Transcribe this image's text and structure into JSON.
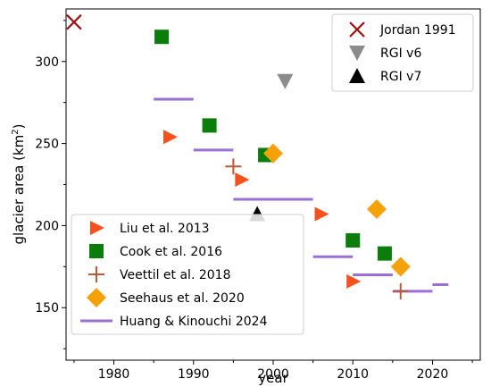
{
  "chart_data": {
    "type": "scatter",
    "xlabel": "year",
    "ylabel_main": "glacier area (km",
    "ylabel_sup": "2",
    "ylabel_close": ")",
    "xlim": [
      1974,
      2026
    ],
    "ylim": [
      118,
      332
    ],
    "xticks": [
      1980,
      1990,
      2000,
      2010,
      2020
    ],
    "yticks": [
      150,
      200,
      250,
      300
    ],
    "xtick_labels": [
      "1980",
      "1990",
      "2000",
      "2010",
      "2020"
    ],
    "ytick_labels": [
      "150",
      "200",
      "250",
      "300"
    ],
    "grid": false,
    "series": [
      {
        "name": "Jordan 1991",
        "marker": "asterisk-x",
        "color": "#a01010",
        "points": [
          [
            1975,
            324
          ]
        ]
      },
      {
        "name": "RGI v6",
        "marker": "triangle-down",
        "color": "#8c8c8c",
        "points": [
          [
            2001.5,
            288
          ]
        ]
      },
      {
        "name": "RGI v7",
        "marker": "triangle-up",
        "color": "#000000",
        "points": [
          [
            1998,
            207
          ]
        ]
      },
      {
        "name": "Liu et al. 2013",
        "marker": "triangle-right",
        "color": "#f4511e",
        "points": [
          [
            1987,
            254
          ],
          [
            1996,
            228
          ],
          [
            2006,
            207
          ],
          [
            2010,
            166
          ]
        ]
      },
      {
        "name": "Cook et al. 2016",
        "marker": "square",
        "color": "#0a7d0a",
        "points": [
          [
            1986,
            315
          ],
          [
            1992,
            261
          ],
          [
            1999,
            243
          ],
          [
            2010,
            191
          ],
          [
            2014,
            183
          ]
        ]
      },
      {
        "name": "Veettil et al. 2018",
        "marker": "plus",
        "color": "#b85c38",
        "points": [
          [
            1995,
            236
          ],
          [
            2016,
            160
          ]
        ]
      },
      {
        "name": "Seehaus et al. 2020",
        "marker": "diamond",
        "color": "#f5a20a",
        "points": [
          [
            2000,
            244
          ],
          [
            2013,
            210
          ],
          [
            2016,
            175
          ]
        ]
      },
      {
        "name": "Huang & Kinouchi 2024",
        "marker": "hline",
        "color": "#9b6fd6",
        "segments": [
          [
            1985,
            1990,
            277
          ],
          [
            1990,
            1995,
            246
          ],
          [
            1995,
            2000,
            216
          ],
          [
            2000,
            2005,
            216
          ],
          [
            2005,
            2010,
            181
          ],
          [
            2010,
            2015,
            170
          ],
          [
            2015,
            2020,
            160
          ],
          [
            2020,
            2022,
            164
          ]
        ]
      }
    ],
    "legend_upper": [
      "Jordan 1991",
      "RGI v6",
      "RGI v7"
    ],
    "legend_upper_placement": "top-right",
    "legend_lower": [
      "Liu et al. 2013",
      "Cook et al. 2016",
      "Veettil et al. 2018",
      "Seehaus et al. 2020",
      "Huang & Kinouchi 2024"
    ],
    "legend_lower_placement": "bottom-left"
  }
}
